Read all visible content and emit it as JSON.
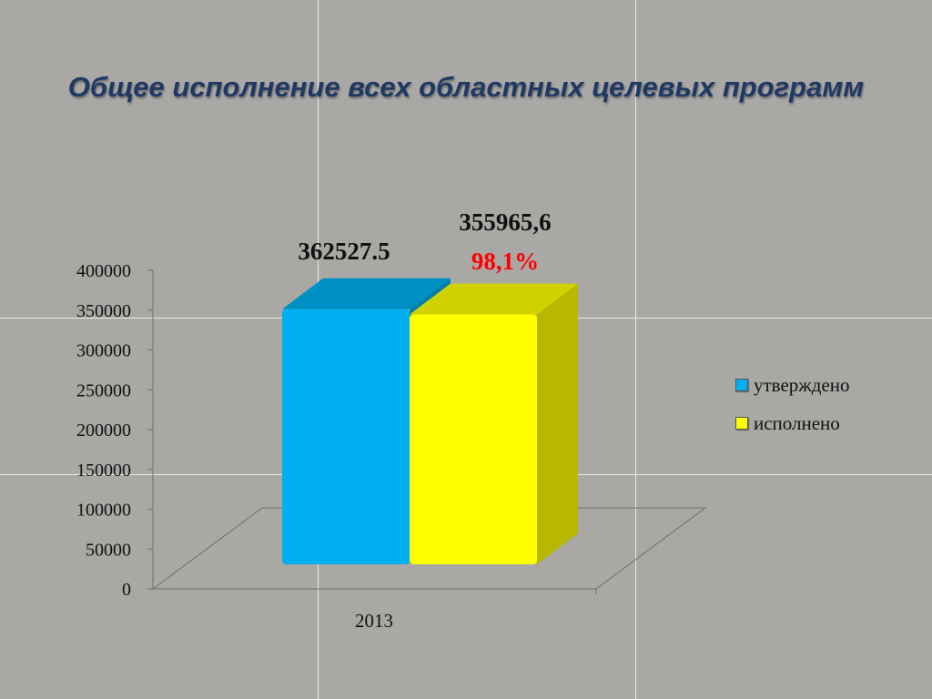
{
  "title": "Общее исполнение всех областных целевых программ",
  "chart_data": {
    "type": "bar",
    "categories": [
      "2013"
    ],
    "series": [
      {
        "name": "утверждено",
        "values": [
          362527.5
        ],
        "label": "362527.5",
        "color": "#00b0f0"
      },
      {
        "name": "исполнено",
        "values": [
          355965.6
        ],
        "label": "355965,6",
        "color": "#ffff00"
      }
    ],
    "annotations": [
      {
        "text": "98,1%",
        "color": "#ff0000"
      }
    ],
    "yticks": [
      "0",
      "50000",
      "100000",
      "150000",
      "200000",
      "250000",
      "300000",
      "350000",
      "400000"
    ],
    "ylim": [
      0,
      400000
    ],
    "grid": false,
    "legend": "right"
  }
}
